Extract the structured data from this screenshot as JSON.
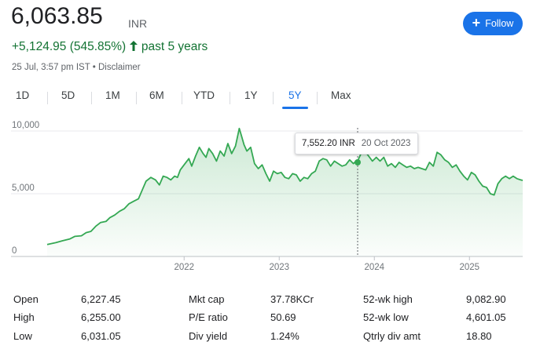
{
  "header": {
    "price": "6,063.85",
    "currency": "INR",
    "change": "+5,124.95 (545.85%)",
    "period": "past 5 years",
    "timestamp": "25 Jul, 3:57 pm IST",
    "disclaimer": "Disclaimer",
    "follow_label": "Follow"
  },
  "tabs": [
    {
      "label": "1D"
    },
    {
      "label": "5D"
    },
    {
      "label": "1M"
    },
    {
      "label": "6M"
    },
    {
      "label": "YTD"
    },
    {
      "label": "1Y"
    },
    {
      "label": "5Y",
      "active": true
    },
    {
      "label": "Max"
    }
  ],
  "tooltip": {
    "value": "7,552.20 INR",
    "date": "20 Oct 2023"
  },
  "colors": {
    "line": "#34a853",
    "accent": "#1a73e8",
    "positive": "#137333"
  },
  "chart_data": {
    "type": "area",
    "y_ticks": [
      "10,000",
      "5,000",
      "0"
    ],
    "x_ticks": [
      "2022",
      "2023",
      "2024",
      "2025"
    ],
    "ylim": [
      0,
      10000
    ],
    "grid": true,
    "series": [
      {
        "x": [
          2020.56,
          2020.65,
          2020.72,
          2020.8,
          2020.85,
          2020.92,
          2020.97,
          2021.02,
          2021.07,
          2021.12,
          2021.18,
          2021.22,
          2021.27,
          2021.32,
          2021.37,
          2021.42,
          2021.47,
          2021.52,
          2021.56,
          2021.6,
          2021.65,
          2021.7,
          2021.74,
          2021.78,
          2021.82,
          2021.86,
          2021.9,
          2021.93,
          2021.96,
          2022.0,
          2022.05,
          2022.08,
          2022.12,
          2022.16,
          2022.2,
          2022.23,
          2022.26,
          2022.3,
          2022.34,
          2022.38,
          2022.42,
          2022.46,
          2022.5,
          2022.54,
          2022.58,
          2022.6,
          2022.63,
          2022.66,
          2022.7,
          2022.74,
          2022.78,
          2022.82,
          2022.86,
          2022.9,
          2022.94,
          2022.98,
          2023.02,
          2023.06,
          2023.1,
          2023.14,
          2023.18,
          2023.22,
          2023.26,
          2023.3,
          2023.34,
          2023.38,
          2023.42,
          2023.46,
          2023.5,
          2023.54,
          2023.58,
          2023.62,
          2023.66,
          2023.7,
          2023.74,
          2023.78,
          2023.8,
          2023.83,
          2023.86,
          2023.9,
          2023.94,
          2023.98,
          2024.02,
          2024.06,
          2024.1,
          2024.14,
          2024.18,
          2024.22,
          2024.26,
          2024.3,
          2024.34,
          2024.38,
          2024.42,
          2024.46,
          2024.5,
          2024.54,
          2024.58,
          2024.62,
          2024.66,
          2024.7,
          2024.74,
          2024.78,
          2024.82,
          2024.86,
          2024.9,
          2024.94,
          2024.98,
          2025.02,
          2025.06,
          2025.1,
          2025.14,
          2025.18,
          2025.22,
          2025.26,
          2025.3,
          2025.34,
          2025.38,
          2025.42,
          2025.46,
          2025.5,
          2025.54,
          2025.56
        ],
        "y": [
          950,
          1100,
          1250,
          1400,
          1600,
          1650,
          1900,
          2000,
          2400,
          2700,
          2800,
          3100,
          3300,
          3600,
          3800,
          4200,
          4400,
          4600,
          5300,
          6000,
          6300,
          6100,
          5700,
          6400,
          6300,
          6100,
          6400,
          6300,
          6900,
          7300,
          7800,
          7200,
          8000,
          8700,
          8200,
          7900,
          8600,
          8200,
          7600,
          8400,
          8000,
          9000,
          8200,
          8800,
          10200,
          9700,
          8900,
          8400,
          8700,
          7400,
          7000,
          7300,
          6600,
          6000,
          6800,
          6600,
          6700,
          6300,
          6200,
          6600,
          6500,
          6000,
          6300,
          6200,
          6600,
          6800,
          7600,
          7800,
          7700,
          7200,
          7600,
          7400,
          7200,
          7300,
          7700,
          7400,
          7550,
          7700,
          8200,
          8400,
          8000,
          7600,
          7900,
          7600,
          7900,
          7200,
          7400,
          7100,
          7500,
          7300,
          7100,
          7200,
          7000,
          7100,
          7000,
          6900,
          7500,
          7200,
          8300,
          8100,
          7700,
          7500,
          7100,
          7300,
          6800,
          6400,
          6100,
          6700,
          6500,
          6000,
          5600,
          5500,
          5000,
          4900,
          5800,
          6200,
          6400,
          6200,
          6400,
          6200,
          6100,
          6060
        ]
      }
    ]
  },
  "stats": [
    [
      {
        "label": "Open",
        "value": "6,227.45"
      },
      {
        "label": "Mkt cap",
        "value": "37.78KCr"
      },
      {
        "label": "52-wk high",
        "value": "9,082.90"
      }
    ],
    [
      {
        "label": "High",
        "value": "6,255.00"
      },
      {
        "label": "P/E ratio",
        "value": "50.69"
      },
      {
        "label": "52-wk low",
        "value": "4,601.05"
      }
    ],
    [
      {
        "label": "Low",
        "value": "6,031.05"
      },
      {
        "label": "Div yield",
        "value": "1.24%"
      },
      {
        "label": "Qtrly div amt",
        "value": "18.80"
      }
    ]
  ]
}
